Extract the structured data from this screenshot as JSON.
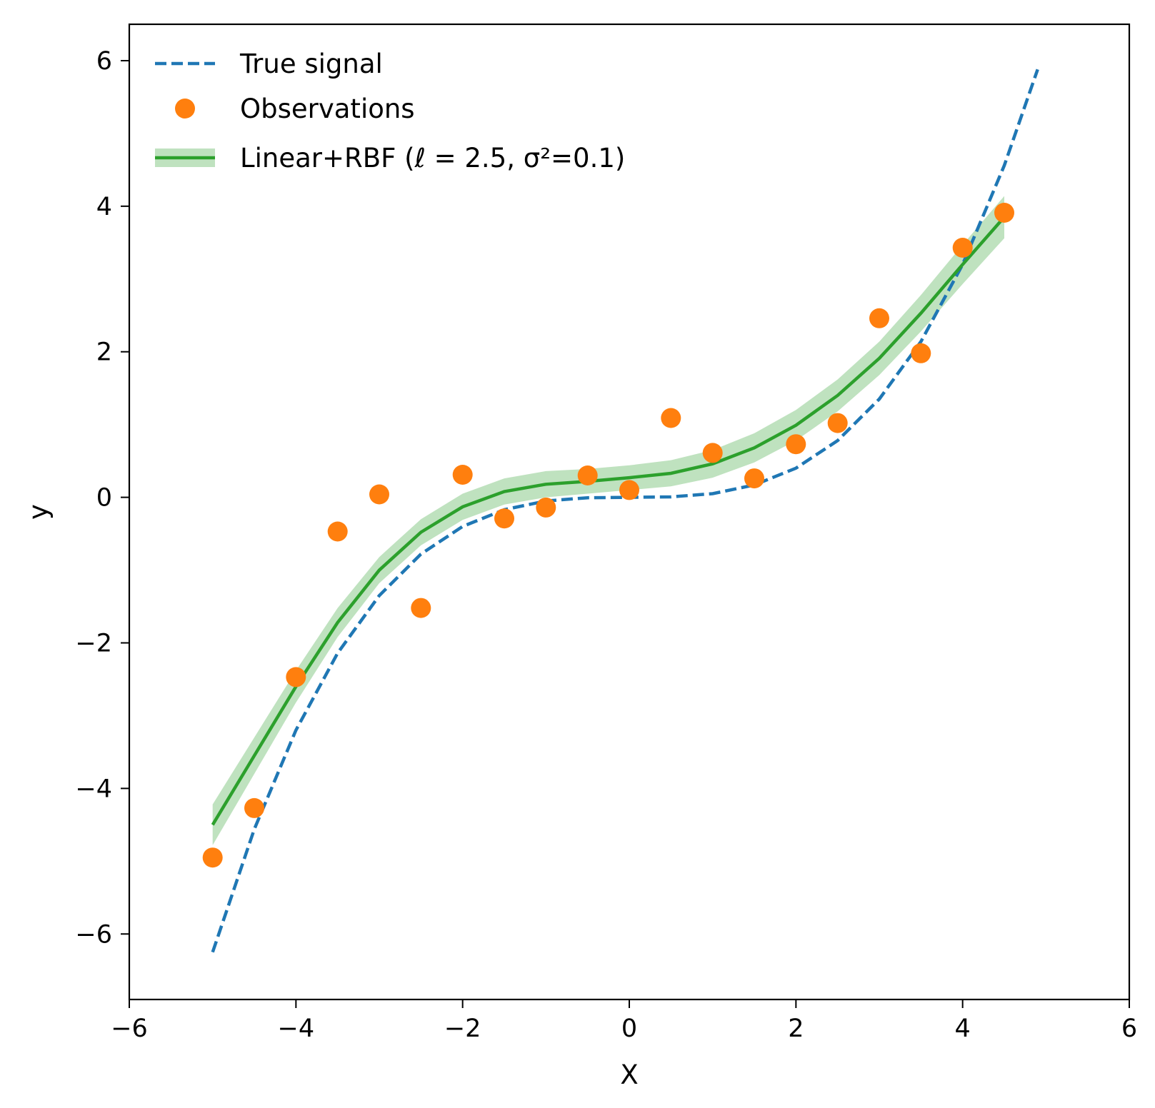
{
  "chart_data": {
    "type": "line",
    "xlabel": "X",
    "ylabel": "y",
    "xlim": [
      -6,
      6
    ],
    "ylim": [
      -6.9,
      6.5
    ],
    "x_ticks": [
      -6,
      -4,
      -2,
      0,
      2,
      4,
      6
    ],
    "x_tick_labels": [
      "−6",
      "−4",
      "−2",
      "0",
      "2",
      "4",
      "6"
    ],
    "y_ticks": [
      -6,
      -4,
      -2,
      0,
      2,
      4,
      6
    ],
    "y_tick_labels": [
      "−6",
      "−4",
      "−2",
      "0",
      "2",
      "4",
      "6"
    ],
    "grid": false,
    "legend_position": "top-left",
    "colors": {
      "true_signal": "#1f77b4",
      "observations": "#ff7f0e",
      "fit": "#2ca02c",
      "band": "#2ca02c"
    },
    "series": [
      {
        "name": "True signal",
        "type": "line",
        "style": "dashed",
        "x": [
          -5,
          -4.5,
          -4,
          -3.5,
          -3,
          -2.5,
          -2,
          -1.5,
          -1,
          -0.5,
          0,
          0.5,
          1,
          1.5,
          2,
          2.5,
          3,
          3.5,
          4,
          4.5,
          4.9
        ],
        "y": [
          -6.25,
          -4.56,
          -3.2,
          -2.14,
          -1.35,
          -0.78,
          -0.4,
          -0.17,
          -0.05,
          -0.006,
          0,
          0.006,
          0.05,
          0.17,
          0.4,
          0.78,
          1.35,
          2.14,
          3.2,
          4.56,
          5.88
        ]
      },
      {
        "name": "Observations",
        "type": "scatter",
        "x": [
          -5,
          -4.5,
          -4,
          -3.5,
          -3,
          -2.5,
          -2,
          -1.5,
          -1,
          -0.5,
          0,
          0.5,
          1,
          1.5,
          2,
          2.5,
          3,
          3.5,
          4,
          4.5
        ],
        "y": [
          -4.95,
          -4.27,
          -2.47,
          -0.47,
          0.04,
          -1.52,
          0.31,
          -0.29,
          -0.14,
          0.3,
          0.1,
          1.09,
          0.61,
          0.26,
          0.73,
          1.02,
          2.46,
          1.98,
          3.43,
          3.91
        ]
      },
      {
        "name": "Linear+RBF (ℓ = 2.5, σ²=0.1)",
        "type": "line",
        "style": "solid",
        "x": [
          -5,
          -4.5,
          -4,
          -3.5,
          -3,
          -2.5,
          -2,
          -1.5,
          -1,
          -0.5,
          0,
          0.5,
          1,
          1.5,
          2,
          2.5,
          3,
          3.5,
          4,
          4.5
        ],
        "y": [
          -4.5,
          -3.55,
          -2.6,
          -1.72,
          -1.0,
          -0.48,
          -0.13,
          0.08,
          0.18,
          0.22,
          0.27,
          0.33,
          0.46,
          0.68,
          0.99,
          1.4,
          1.91,
          2.53,
          3.2,
          3.85
        ],
        "band_lower": [
          -4.78,
          -3.8,
          -2.82,
          -1.92,
          -1.18,
          -0.66,
          -0.31,
          -0.1,
          0.0,
          0.05,
          0.1,
          0.15,
          0.27,
          0.48,
          0.78,
          1.18,
          1.68,
          2.28,
          2.93,
          3.56
        ],
        "band_upper": [
          -4.22,
          -3.3,
          -2.38,
          -1.52,
          -0.82,
          -0.3,
          0.05,
          0.26,
          0.36,
          0.39,
          0.44,
          0.51,
          0.65,
          0.88,
          1.2,
          1.62,
          2.14,
          2.78,
          3.47,
          4.14
        ]
      }
    ]
  }
}
